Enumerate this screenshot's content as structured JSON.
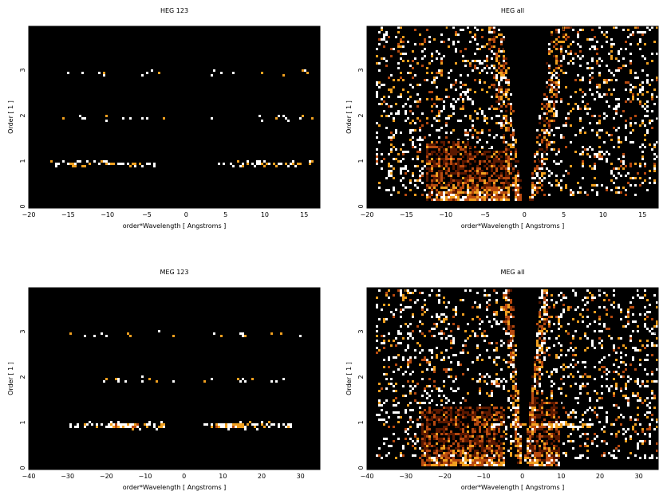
{
  "chart_data": [
    {
      "type": "heatmap",
      "title": "HEG 123",
      "xlabel": "order*Wavelength [ Angstroms ]",
      "ylabel": "Order [ 1 ]",
      "xlim": [
        -20,
        17
      ],
      "ylim": [
        0,
        4
      ],
      "xticks": [
        -20,
        -15,
        -10,
        -5,
        0,
        5,
        10,
        15
      ],
      "yticks": [
        0,
        1,
        2,
        3
      ],
      "grid": false,
      "colormap": [
        "#000000",
        "#5a1800",
        "#b84a10",
        "#f0a020",
        "#ffffff"
      ],
      "features": [
        {
          "kind": "order_band",
          "order": 1,
          "x_range": [
            -18,
            -4
          ],
          "density": 0.32
        },
        {
          "kind": "order_band",
          "order": 1,
          "x_range": [
            4,
            16
          ],
          "density": 0.28
        },
        {
          "kind": "order_band",
          "order": 2,
          "x_range": [
            -16,
            -3
          ],
          "density": 0.07
        },
        {
          "kind": "order_band",
          "order": 2,
          "x_range": [
            3,
            16
          ],
          "density": 0.07
        },
        {
          "kind": "order_band",
          "order": 3,
          "x_range": [
            -16,
            -3
          ],
          "density": 0.05
        },
        {
          "kind": "order_band",
          "order": 3,
          "x_range": [
            3,
            16
          ],
          "density": 0.05
        }
      ]
    },
    {
      "type": "heatmap",
      "title": "HEG all",
      "xlabel": "order*Wavelength [ Angstroms ]",
      "ylabel": "Order [ 1 ]",
      "xlim": [
        -20,
        17
      ],
      "ylim": [
        0,
        4
      ],
      "xticks": [
        -20,
        -15,
        -10,
        -5,
        0,
        5,
        10,
        15
      ],
      "yticks": [
        0,
        1,
        2,
        3
      ],
      "grid": false,
      "colormap": [
        "#000000",
        "#5a1800",
        "#b84a10",
        "#f0a020",
        "#ffffff"
      ],
      "features": [
        {
          "kind": "background_noise",
          "x_range": [
            -19,
            17
          ],
          "y_range": [
            0.3,
            4
          ],
          "density": 0.3
        },
        {
          "kind": "zero_order_wedge",
          "x_at_top": [
            -3,
            4.5
          ],
          "x_at_bottom": [
            -0.3,
            0.7
          ]
        },
        {
          "kind": "dense_block",
          "x_range": [
            -12.5,
            -7
          ],
          "y_range": [
            0.2,
            1.5
          ]
        },
        {
          "kind": "dense_block",
          "x_range": [
            -7,
            -2
          ],
          "y_range": [
            0.2,
            1.3
          ]
        },
        {
          "kind": "streak",
          "x_from": -1,
          "x_to": -4,
          "y_from": 0.2,
          "y_to": 4
        },
        {
          "kind": "streak",
          "x_from": 1,
          "x_to": 4.5,
          "y_from": 0.2,
          "y_to": 4
        }
      ]
    },
    {
      "type": "heatmap",
      "title": "MEG 123",
      "xlabel": "order*Wavelength [ Angstroms ]",
      "ylabel": "Order [ 1 ]",
      "xlim": [
        -40,
        35
      ],
      "ylim": [
        0,
        4
      ],
      "xticks": [
        -40,
        -30,
        -20,
        -10,
        0,
        10,
        20,
        30
      ],
      "yticks": [
        0,
        1,
        2,
        3
      ],
      "grid": false,
      "colormap": [
        "#000000",
        "#5a1800",
        "#b84a10",
        "#f0a020",
        "#ffffff"
      ],
      "features": [
        {
          "kind": "order_band",
          "order": 1,
          "x_range": [
            -30,
            -5
          ],
          "density": 0.3
        },
        {
          "kind": "order_band",
          "order": 1,
          "x_range": [
            5,
            28
          ],
          "density": 0.3
        },
        {
          "kind": "hot_spot",
          "x_range": [
            -20,
            -12
          ],
          "order": 1
        },
        {
          "kind": "hot_spot",
          "x_range": [
            8,
            15
          ],
          "order": 1
        },
        {
          "kind": "order_band",
          "order": 2,
          "x_range": [
            -30,
            -2
          ],
          "density": 0.06
        },
        {
          "kind": "order_band",
          "order": 2,
          "x_range": [
            2,
            30
          ],
          "density": 0.06
        },
        {
          "kind": "order_band",
          "order": 3,
          "x_range": [
            -35,
            -2
          ],
          "density": 0.05
        },
        {
          "kind": "order_band",
          "order": 3,
          "x_range": [
            2,
            33
          ],
          "density": 0.05
        }
      ]
    },
    {
      "type": "heatmap",
      "title": "MEG all",
      "xlabel": "order*Wavelength [ Angstroms ]",
      "ylabel": "Order [ 1 ]",
      "xlim": [
        -40,
        35
      ],
      "ylim": [
        0,
        4
      ],
      "xticks": [
        -40,
        -30,
        -20,
        -10,
        0,
        10,
        20,
        30
      ],
      "yticks": [
        0,
        1,
        2,
        3
      ],
      "grid": false,
      "colormap": [
        "#000000",
        "#5a1800",
        "#b84a10",
        "#f0a020",
        "#ffffff"
      ],
      "features": [
        {
          "kind": "background_noise",
          "x_range": [
            -38,
            35
          ],
          "y_range": [
            0.3,
            4
          ],
          "density": 0.3
        },
        {
          "kind": "zero_order_wedge",
          "x_at_top": [
            -3,
            5
          ],
          "x_at_bottom": [
            -0.5,
            0.8
          ]
        },
        {
          "kind": "dense_block",
          "x_range": [
            -26,
            -5
          ],
          "y_range": [
            0.1,
            1.4
          ]
        },
        {
          "kind": "dense_block",
          "x_range": [
            2,
            10
          ],
          "y_range": [
            0.1,
            1.5
          ]
        },
        {
          "kind": "order_band",
          "order": 1,
          "x_range": [
            -10,
            18
          ],
          "density": 0.5
        },
        {
          "kind": "streak",
          "x_from": -1,
          "x_to": -4,
          "y_from": 0.2,
          "y_to": 4
        },
        {
          "kind": "streak",
          "x_from": 1,
          "x_to": 6,
          "y_from": 0.2,
          "y_to": 4
        }
      ]
    }
  ]
}
